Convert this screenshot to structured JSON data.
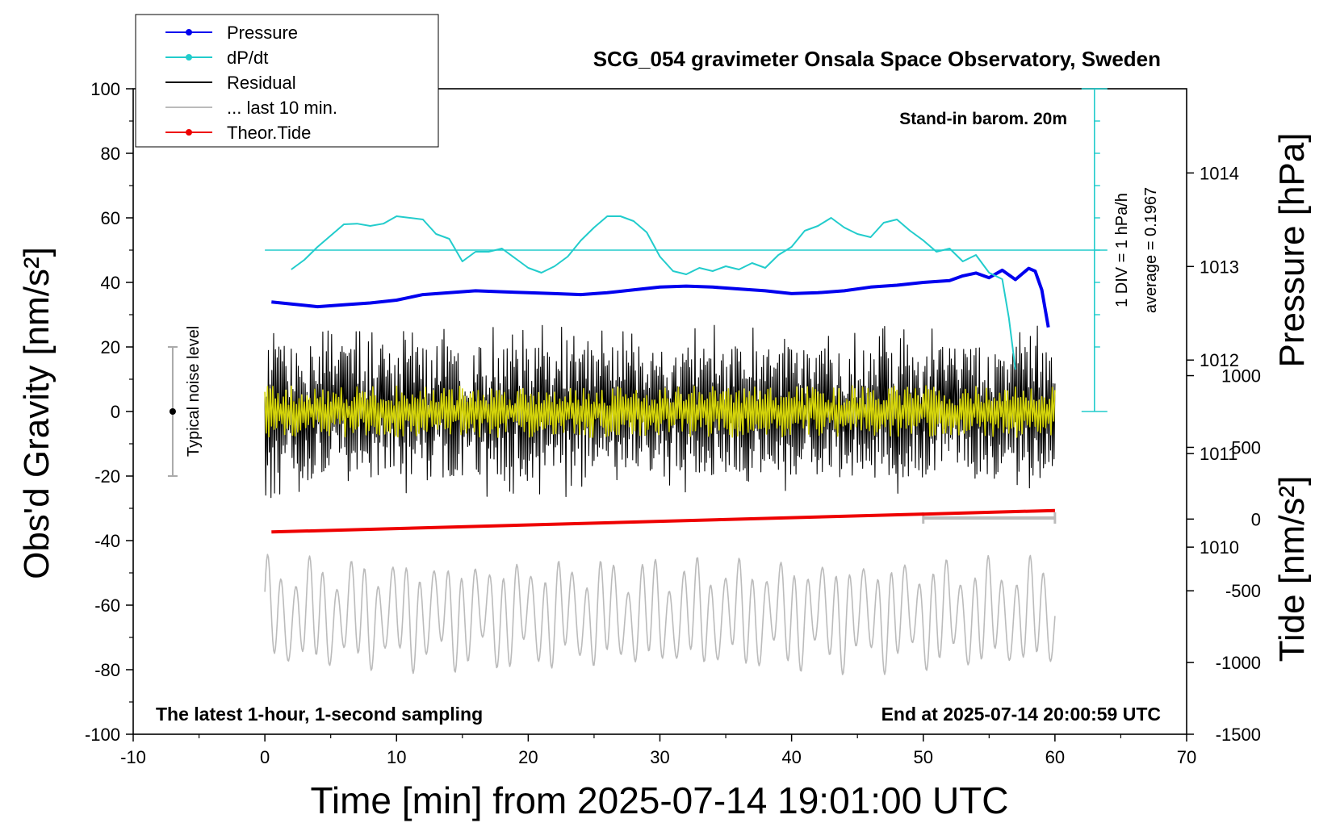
{
  "chart_data": {
    "type": "line",
    "title": "SCG_054 gravimeter Onsala Space Observatory, Sweden",
    "station_note": "Stand-in barom. 20m",
    "footer_left": "The latest 1-hour, 1-second sampling",
    "footer_right": "End at 2025-07-14 20:00:59 UTC",
    "xlabel": "Time [min] from 2025-07-14 19:01:00 UTC",
    "ylabel": "Obs'd Gravity [nm/s²]",
    "y2label": "Pressure [hPa]",
    "y3label": "Tide [nm/s²]",
    "xlim": [
      -10,
      70
    ],
    "ylim": [
      -100,
      100
    ],
    "pressure_lim": [
      1008,
      1014.9
    ],
    "tide_lim": [
      -1500,
      3000
    ],
    "xticks": [
      "-10",
      "0",
      "10",
      "20",
      "30",
      "40",
      "50",
      "60",
      "70"
    ],
    "yticks": [
      "-100",
      "-80",
      "-60",
      "-40",
      "-20",
      "0",
      "20",
      "40",
      "60",
      "80",
      "100"
    ],
    "pressure_ticks": [
      "1010",
      "1011",
      "1012",
      "1013",
      "1014"
    ],
    "tide_ticks": [
      "-1500",
      "-1000",
      "-500",
      "0",
      "500",
      "1000"
    ],
    "noise_label": "Typical noise level",
    "noise_level": 20,
    "dpdt_scale": {
      "div_label": "1 DIV = 1 hPa/h",
      "average_label": "average = 0.1967",
      "x": 63
    },
    "last10_bar": {
      "x_start": 50,
      "x_end": 60,
      "y": -33
    },
    "legend_position": "top-left",
    "legend": [
      {
        "label": "Pressure",
        "color": "#0000ee",
        "marker": true
      },
      {
        "label": "dP/dt",
        "color": "#22cccc",
        "marker": true
      },
      {
        "label": "Residual",
        "color": "#000000",
        "marker": false
      },
      {
        "label": "... last 10 min.",
        "color": "#bbbbbb",
        "marker": false
      },
      {
        "label": "Theor.Tide",
        "color": "#ee0000",
        "marker": true
      }
    ],
    "series": [
      {
        "name": "Pressure",
        "axis": "pressure",
        "color": "#0000ee",
        "x": [
          0.5,
          2,
          4,
          6,
          8,
          10,
          12,
          14,
          16,
          18,
          20,
          22,
          24,
          26,
          28,
          30,
          32,
          34,
          36,
          38,
          40,
          42,
          44,
          46,
          48,
          50,
          52,
          53,
          54,
          55,
          56,
          57,
          58,
          58.5,
          59,
          59.5
        ],
        "values": [
          1012.62,
          1012.6,
          1012.57,
          1012.59,
          1012.61,
          1012.64,
          1012.7,
          1012.72,
          1012.74,
          1012.73,
          1012.72,
          1012.71,
          1012.7,
          1012.72,
          1012.75,
          1012.78,
          1012.79,
          1012.78,
          1012.76,
          1012.74,
          1012.71,
          1012.72,
          1012.74,
          1012.78,
          1012.8,
          1012.83,
          1012.85,
          1012.9,
          1012.93,
          1012.88,
          1012.96,
          1012.86,
          1012.98,
          1012.95,
          1012.75,
          1012.35
        ]
      },
      {
        "name": "dP/dt",
        "axis": "dpdt",
        "color": "#22cccc",
        "x": [
          2,
          3,
          4,
          5,
          6,
          7,
          8,
          9,
          10,
          11,
          12,
          13,
          14,
          15,
          16,
          17,
          18,
          19,
          20,
          21,
          22,
          23,
          24,
          25,
          26,
          27,
          28,
          29,
          30,
          31,
          32,
          33,
          34,
          35,
          36,
          37,
          38,
          39,
          40,
          41,
          42,
          43,
          44,
          45,
          46,
          47,
          48,
          49,
          50,
          51,
          52,
          53,
          54,
          55,
          56,
          56.5,
          57
        ],
        "values": [
          -0.6,
          -0.3,
          0.1,
          0.45,
          0.8,
          0.82,
          0.75,
          0.82,
          1.05,
          1.0,
          0.95,
          0.5,
          0.35,
          -0.35,
          -0.05,
          -0.05,
          0.05,
          -0.25,
          -0.55,
          -0.7,
          -0.5,
          -0.2,
          0.3,
          0.7,
          1.05,
          1.05,
          0.9,
          0.55,
          -0.2,
          -0.65,
          -0.75,
          -0.55,
          -0.65,
          -0.5,
          -0.6,
          -0.4,
          -0.55,
          -0.15,
          0.1,
          0.6,
          0.75,
          1.0,
          0.7,
          0.5,
          0.4,
          0.85,
          0.95,
          0.6,
          0.3,
          -0.05,
          0.05,
          -0.35,
          -0.15,
          -0.7,
          -0.9,
          -2.1,
          -3.7
        ]
      },
      {
        "name": "Theor.Tide",
        "axis": "tide",
        "color": "#ee0000",
        "x": [
          0.5,
          60
        ],
        "values": [
          -90,
          60
        ]
      }
    ],
    "residual_summary": {
      "color": "#000000",
      "x_range": [
        0,
        60
      ],
      "amplitude": 27
    },
    "smoothed_summary": {
      "color": "#d4d40a",
      "x_range": [
        0,
        60
      ],
      "amplitude": 8
    },
    "last10_summary": {
      "color": "#bbbbbb",
      "x_range": [
        0,
        60
      ],
      "center_y": -63,
      "amplitude": 15
    }
  }
}
